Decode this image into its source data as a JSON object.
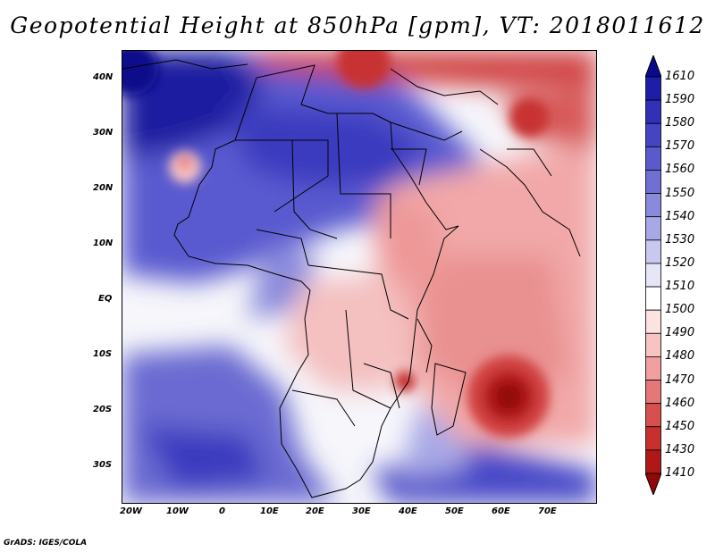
{
  "title": "Geopotential Height at 850hPa [gpm], VT: 2018011612",
  "footer": "GrADS: IGES/COLA",
  "y_axis_labels": [
    "40N",
    "30N",
    "20N",
    "10N",
    "EQ",
    "10S",
    "20S",
    "30S"
  ],
  "x_axis_labels": [
    "20W",
    "10W",
    "0",
    "10E",
    "20E",
    "30E",
    "40E",
    "50E",
    "60E",
    "70E"
  ],
  "colorbar": {
    "levels": [
      "1610",
      "1590",
      "1580",
      "1570",
      "1560",
      "1550",
      "1540",
      "1530",
      "1520",
      "1510",
      "1500",
      "1490",
      "1480",
      "1470",
      "1460",
      "1450",
      "1430",
      "1410"
    ],
    "colors": [
      "#0a0a8c",
      "#1d1da8",
      "#3030b8",
      "#4545c4",
      "#5a5acc",
      "#7070d4",
      "#8a8adc",
      "#a8a8e6",
      "#c8c8f0",
      "#e6e6f8",
      "#ffffff",
      "#fde2e2",
      "#f8c3c3",
      "#f0a0a0",
      "#e47878",
      "#d65050",
      "#c83030",
      "#b01818",
      "#900808"
    ]
  },
  "map_colors": {
    "low_high_blue": "#1414a0",
    "background_white": "#ffffff",
    "strong_red": "#b01818",
    "boundary_line": "#000000"
  }
}
